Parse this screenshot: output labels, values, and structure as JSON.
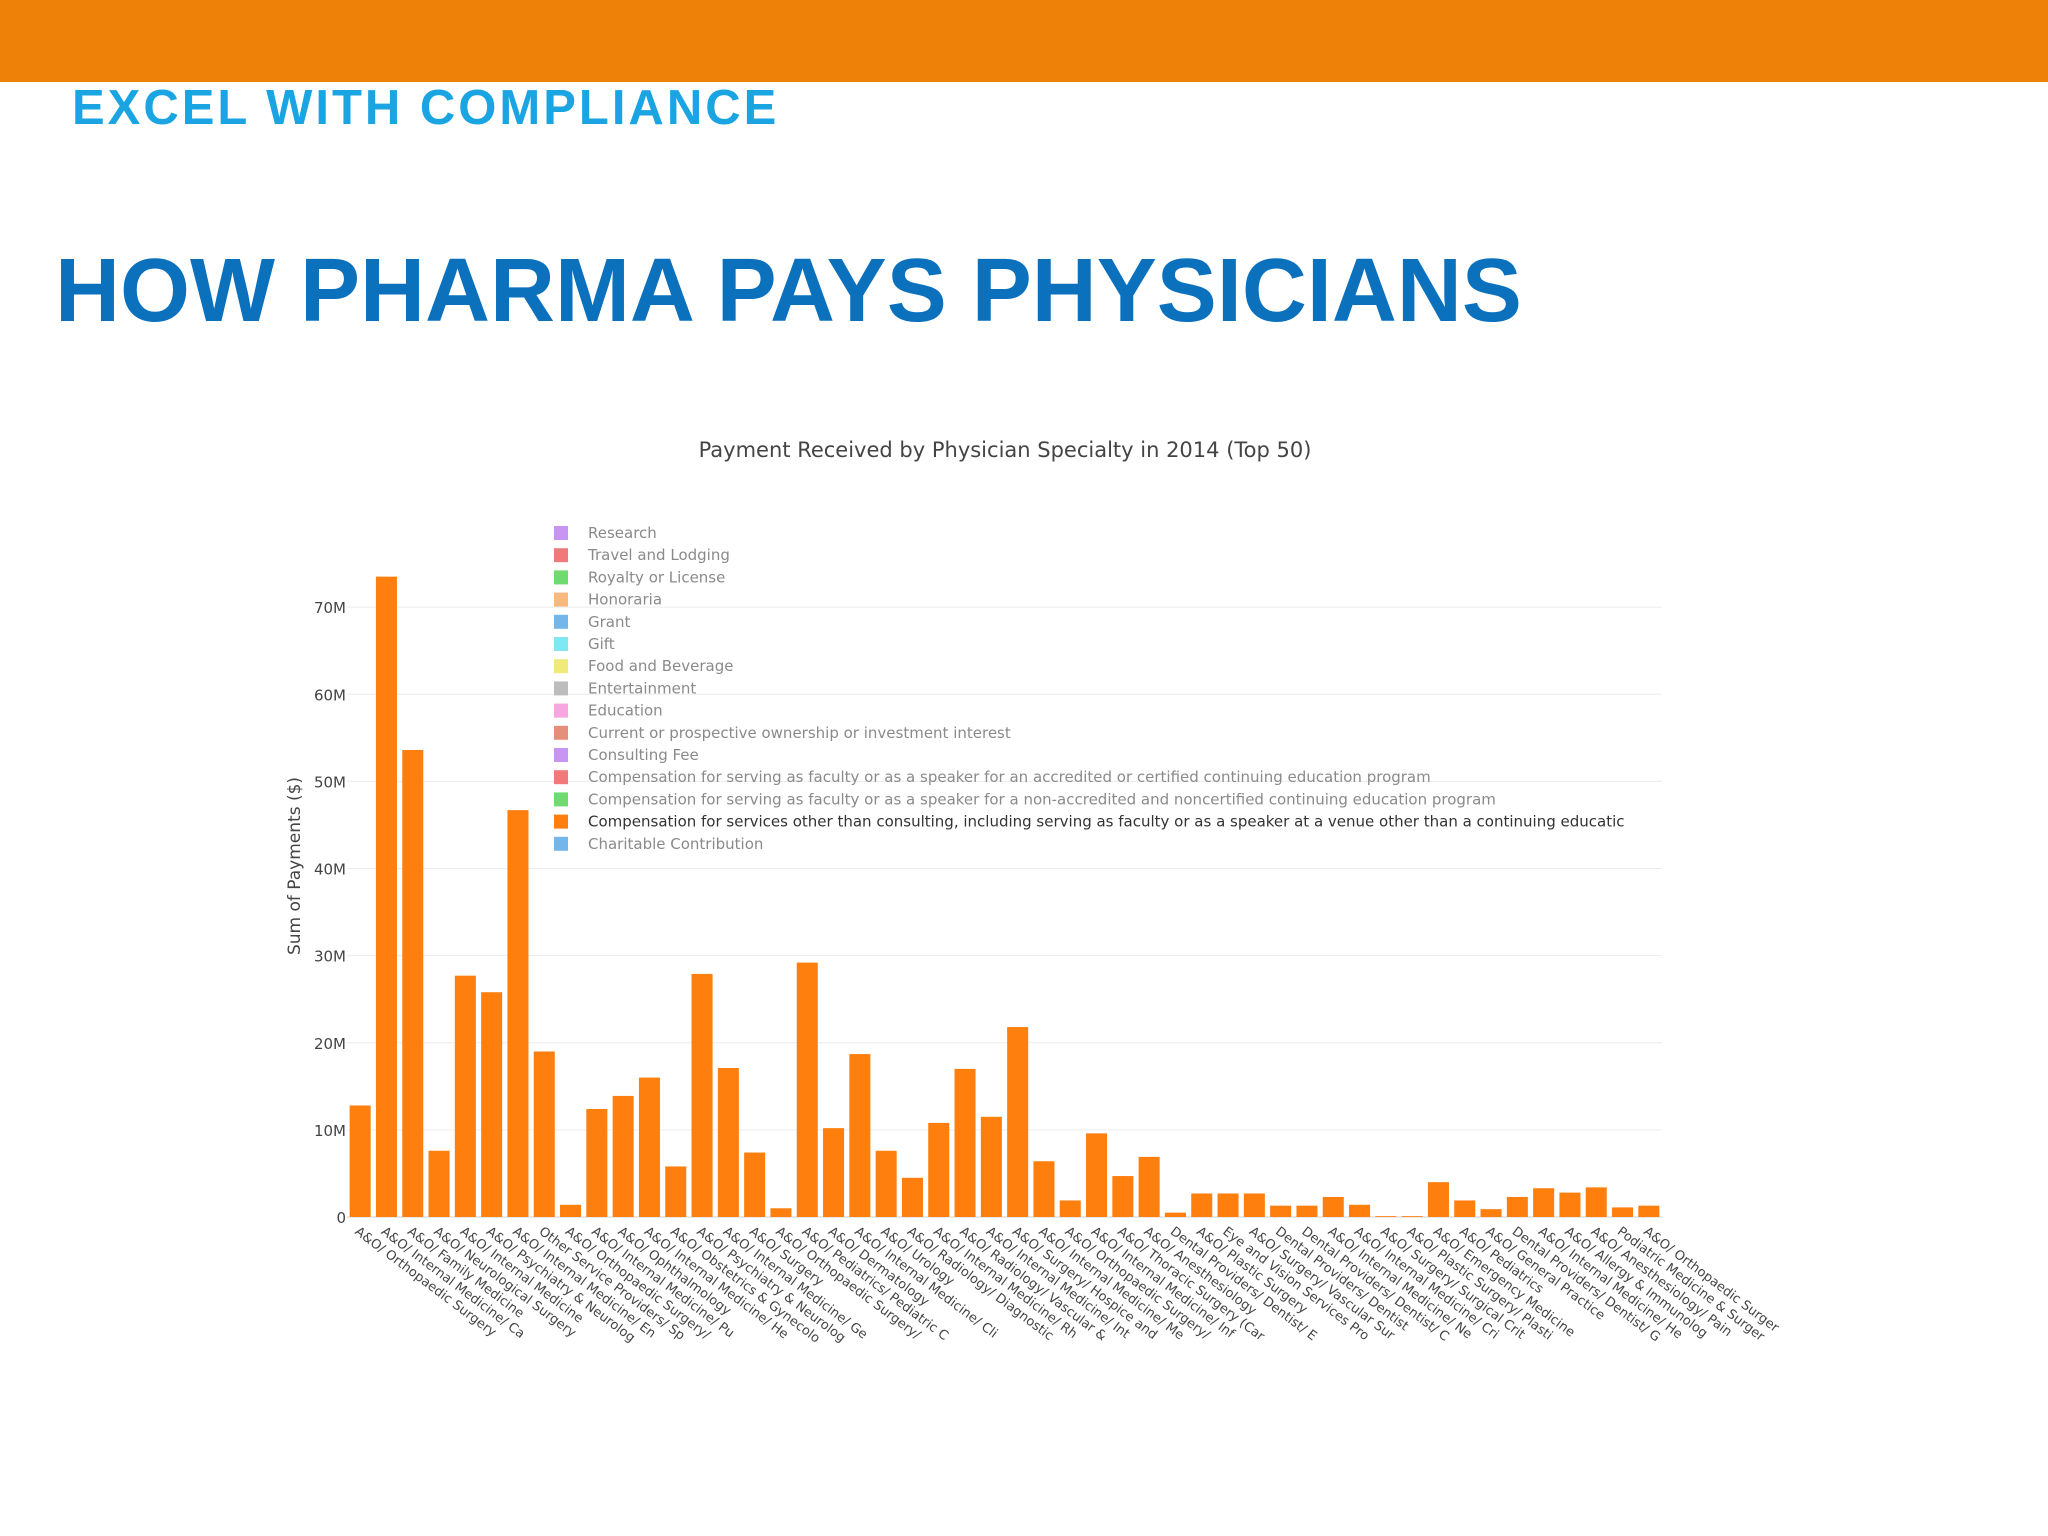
{
  "slide": {
    "kicker": "EXCEL WITH COMPLIANCE",
    "title": "HOW PHARMA PAYS PHYSICIANS"
  },
  "colors": {
    "top_bar": "#ee8108",
    "kicker": "#1aa5e2",
    "title": "#0b71bd",
    "bar": "#ff7f0e"
  },
  "chart_data": {
    "type": "bar",
    "title": "Payment Received by Physician Specialty in 2014 (Top 50)",
    "xlabel": "",
    "ylabel": "Sum of Payments ($)",
    "ylim": [
      0,
      80000000
    ],
    "yticks": [
      0,
      10000000,
      20000000,
      30000000,
      40000000,
      50000000,
      60000000,
      70000000
    ],
    "ytick_labels": [
      "0",
      "10M",
      "20M",
      "30M",
      "40M",
      "50M",
      "60M",
      "70M"
    ],
    "grid": true,
    "legend_position": "top-left inside plot",
    "legend": [
      {
        "name": "Research",
        "color": "#c995f2"
      },
      {
        "name": "Travel and Lodging",
        "color": "#f07a7a"
      },
      {
        "name": "Royalty or License",
        "color": "#6fdb6f"
      },
      {
        "name": "Honoraria",
        "color": "#f9b97c"
      },
      {
        "name": "Grant",
        "color": "#72b6ea"
      },
      {
        "name": "Gift",
        "color": "#7fe8f2"
      },
      {
        "name": "Food and Beverage",
        "color": "#f0ea7a"
      },
      {
        "name": "Entertainment",
        "color": "#bdbdbd"
      },
      {
        "name": "Education",
        "color": "#f7a6df"
      },
      {
        "name": "Current or prospective ownership or investment interest",
        "color": "#e48f7a"
      },
      {
        "name": "Consulting Fee",
        "color": "#c995f2"
      },
      {
        "name": "Compensation for serving as faculty or as a speaker for an accredited or certified continuing education program",
        "color": "#f07a7a"
      },
      {
        "name": "Compensation for serving as faculty or as a speaker for a non-accredited and noncertified continuing education program",
        "color": "#6fdb6f"
      },
      {
        "name": "Compensation for services other than consulting, including serving as faculty or as a speaker at a venue other than a continuing educatic",
        "color": "#ff7f0e",
        "active": true
      },
      {
        "name": "Charitable Contribution",
        "color": "#72b6ea"
      }
    ],
    "categories": [
      "A&O/ Orthopaedic Surgery",
      "A&O/ Internal Medicine/ Ca",
      "A&O/ Family Medicine",
      "A&O/ Neurological Surgery",
      "A&O/ Internal Medicine",
      "A&O/ Psychiatry & Neurolog",
      "A&O/ Internal Medicine/ En",
      "Other Service Providers/ Sp",
      "A&O/ Orthopaedic Surgery/",
      "A&O/ Internal Medicine/ Pu",
      "A&O/ Ophthalmology",
      "A&O/ Internal Medicine/ He",
      "A&O/ Obstetrics & Gynecolo",
      "A&O/ Psychiatry & Neurolog",
      "A&O/ Internal Medicine/ Ge",
      "A&O/ Surgery",
      "A&O/ Orthopaedic Surgery/",
      "A&O/ Pediatrics/ Pediatric C",
      "A&O/ Dermatology",
      "A&O/ Internal Medicine/ Cli",
      "A&O/ Urology",
      "A&O/ Radiology/ Diagnostic",
      "A&O/ Internal Medicine/ Rh",
      "A&O/ Radiology/ Vascular &",
      "A&O/ Internal Medicine/ Int",
      "A&O/ Surgery/ Hospice and",
      "A&O/ Internal Medicine/ Me",
      "A&O/ Orthopaedic Surgery/",
      "A&O/ Internal Medicine/ Inf",
      "A&O/ Thoracic Surgery (Car",
      "A&O/ Anesthesiology",
      "Dental Providers/ Dentist/ E",
      "A&O/ Plastic Surgery",
      "Eye and Vision Services Pro",
      "A&O/ Surgery/ Vascular Sur",
      "Dental Providers/ Dentist",
      "Dental Providers/ Dentist/ C",
      "A&O/ Internal Medicine/ Ne",
      "A&O/ Internal Medicine/ Cri",
      "A&O/ Surgery/ Surgical Crit",
      "A&O/ Plastic Surgery/ Plasti",
      "A&O/ Emergency Medicine",
      "A&O/ Pediatrics",
      "A&O/ General Practice",
      "Dental Providers/ Dentist/ G",
      "A&O/ Internal Medicine/ He",
      "A&O/ Allergy & Immunolog",
      "A&O/ Anesthesiology/ Pain",
      "Podiatric Medicine & Surger",
      "A&O/ Orthopaedic Surger"
    ],
    "values": [
      12800000,
      73500000,
      53600000,
      7600000,
      27700000,
      25800000,
      46700000,
      19000000,
      1400000,
      12400000,
      13900000,
      16000000,
      5800000,
      27900000,
      17100000,
      7400000,
      1000000,
      29200000,
      10200000,
      18700000,
      7600000,
      4500000,
      10800000,
      17000000,
      11500000,
      21800000,
      6400000,
      1900000,
      9600000,
      4700000,
      6900000,
      500000,
      2700000,
      2700000,
      2700000,
      1300000,
      1300000,
      2300000,
      1400000,
      100000,
      100000,
      4000000,
      1900000,
      900000,
      2300000,
      3300000,
      2800000,
      3400000,
      1100000,
      1300000
    ]
  }
}
